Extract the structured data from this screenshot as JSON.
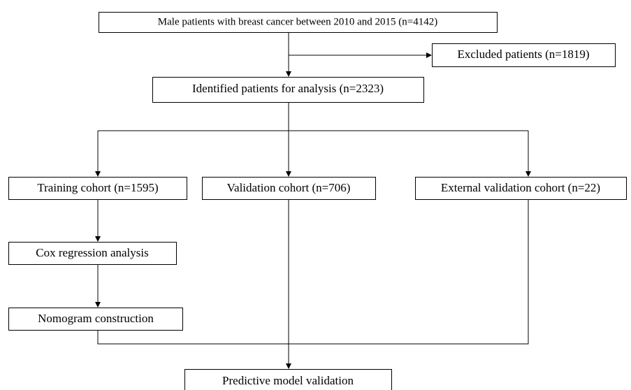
{
  "nodes": [
    {
      "label": "Male patients with breast cancer between 2010 and 2015 (n=4142)"
    },
    {
      "label": "Excluded patients (n=1819)"
    },
    {
      "label": "Identified patients for analysis (n=2323)"
    },
    {
      "label": "Training cohort (n=1595)"
    },
    {
      "label": "Validation cohort (n=706)"
    },
    {
      "label": "External validation cohort (n=22)"
    },
    {
      "label": "Cox regression analysis"
    },
    {
      "label": "Nomogram construction"
    },
    {
      "label": "Predictive model validation"
    }
  ]
}
